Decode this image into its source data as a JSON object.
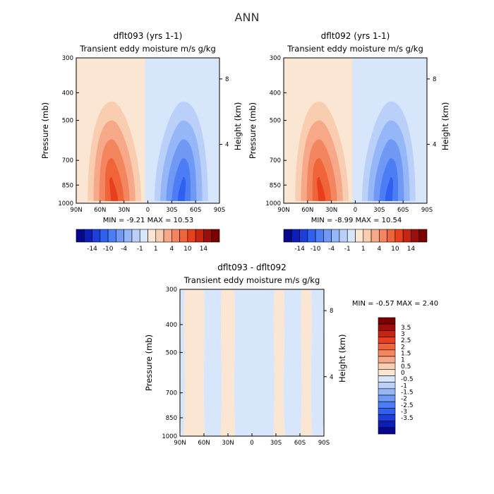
{
  "title": "ANN",
  "colors": {
    "neg": [
      "#08088e",
      "#0b1fb8",
      "#1c3fdc",
      "#2f60f0",
      "#4d7df4",
      "#6f99f5",
      "#95b6f7",
      "#bad0f8",
      "#d8e6fb"
    ],
    "pos": [
      "#fbe6d4",
      "#f8cdb0",
      "#f6a888",
      "#f3865f",
      "#f0643a",
      "#e8401f",
      "#c82510",
      "#9d0d0a",
      "#7a0000"
    ]
  },
  "chart_data": [
    {
      "type": "heatmap",
      "title": "dflt093 (yrs 1-1)",
      "subtitle": "Transient eddy moisture m/s g/kg",
      "xlabel": "",
      "ylabel": "Pressure (mb)",
      "ylabel_right": "Height (km)",
      "x_ticks": [
        "90N",
        "60N",
        "30N",
        "0",
        "30S",
        "60S",
        "90S"
      ],
      "y_ticks": [
        "300",
        "400",
        "500",
        "700",
        "850",
        "1000"
      ],
      "y_ticks_right": [
        "8",
        "4"
      ],
      "xlim": [
        90,
        -90
      ],
      "ylim": [
        1000,
        300
      ],
      "stats": "MIN = -9.21    MAX = 10.53",
      "colorbar_labels": [
        "-14",
        "-10",
        "-4",
        "-1",
        "1",
        "4",
        "10",
        "14"
      ],
      "features": [
        {
          "lat": 42,
          "p": 910,
          "value": 10.53,
          "sign": "positive",
          "spread_lat": 32,
          "top_p": 450
        },
        {
          "lat": -42,
          "p": 900,
          "value": -9.21,
          "sign": "negative",
          "spread_lat": 32,
          "top_p": 420
        }
      ]
    },
    {
      "type": "heatmap",
      "title": "dflt092 (yrs 1-1)",
      "subtitle": "Transient eddy moisture m/s g/kg",
      "xlabel": "",
      "ylabel": "Pressure (mb)",
      "ylabel_right": "Height (km)",
      "x_ticks": [
        "90N",
        "60N",
        "30N",
        "0",
        "30S",
        "60S",
        "90S"
      ],
      "y_ticks": [
        "300",
        "400",
        "500",
        "700",
        "850",
        "1000"
      ],
      "y_ticks_right": [
        "8",
        "4"
      ],
      "xlim": [
        90,
        -90
      ],
      "ylim": [
        1000,
        300
      ],
      "stats": "MIN = -8.99    MAX = 10.54",
      "colorbar_labels": [
        "-14",
        "-10",
        "-4",
        "-1",
        "1",
        "4",
        "10",
        "14"
      ],
      "features": [
        {
          "lat": 42,
          "p": 910,
          "value": 10.54,
          "sign": "positive",
          "spread_lat": 32,
          "top_p": 450
        },
        {
          "lat": -42,
          "p": 900,
          "value": -8.99,
          "sign": "negative",
          "spread_lat": 32,
          "top_p": 420
        }
      ]
    },
    {
      "type": "heatmap",
      "title": "dflt093 - dflt092",
      "subtitle": "Transient eddy moisture m/s g/kg",
      "xlabel": "",
      "ylabel": "Pressure (mb)",
      "ylabel_right": "Height (km)",
      "x_ticks": [
        "90N",
        "60N",
        "30N",
        "0",
        "30S",
        "60S",
        "90S"
      ],
      "y_ticks": [
        "300",
        "400",
        "500",
        "700",
        "850",
        "1000"
      ],
      "y_ticks_right": [
        "8",
        "4"
      ],
      "xlim": [
        90,
        -90
      ],
      "ylim": [
        1000,
        300
      ],
      "stats": "MIN =   -0.57    MAX =   2.40",
      "colorbar_labels": [
        "3.5",
        "3",
        "2.5",
        "2",
        "1.5",
        "1",
        "0.5",
        "0",
        "-0.5",
        "-1",
        "-1.5",
        "-2",
        "-2.5",
        "-3",
        "-3.5"
      ],
      "difference_bands": [
        {
          "lat_from": 90,
          "lat_to": 84,
          "sign": "negative"
        },
        {
          "lat_from": 84,
          "lat_to": 60,
          "sign": "positive"
        },
        {
          "lat_from": 60,
          "lat_to": 38,
          "sign": "negative"
        },
        {
          "lat_from": 38,
          "lat_to": 22,
          "sign": "positive"
        },
        {
          "lat_from": 22,
          "lat_to": -28,
          "sign": "negative"
        },
        {
          "lat_from": -28,
          "lat_to": -40,
          "sign": "positive"
        },
        {
          "lat_from": -40,
          "lat_to": -62,
          "sign": "negative"
        },
        {
          "lat_from": -62,
          "lat_to": -74,
          "sign": "positive"
        },
        {
          "lat_from": -74,
          "lat_to": -90,
          "sign": "negative"
        }
      ]
    }
  ]
}
